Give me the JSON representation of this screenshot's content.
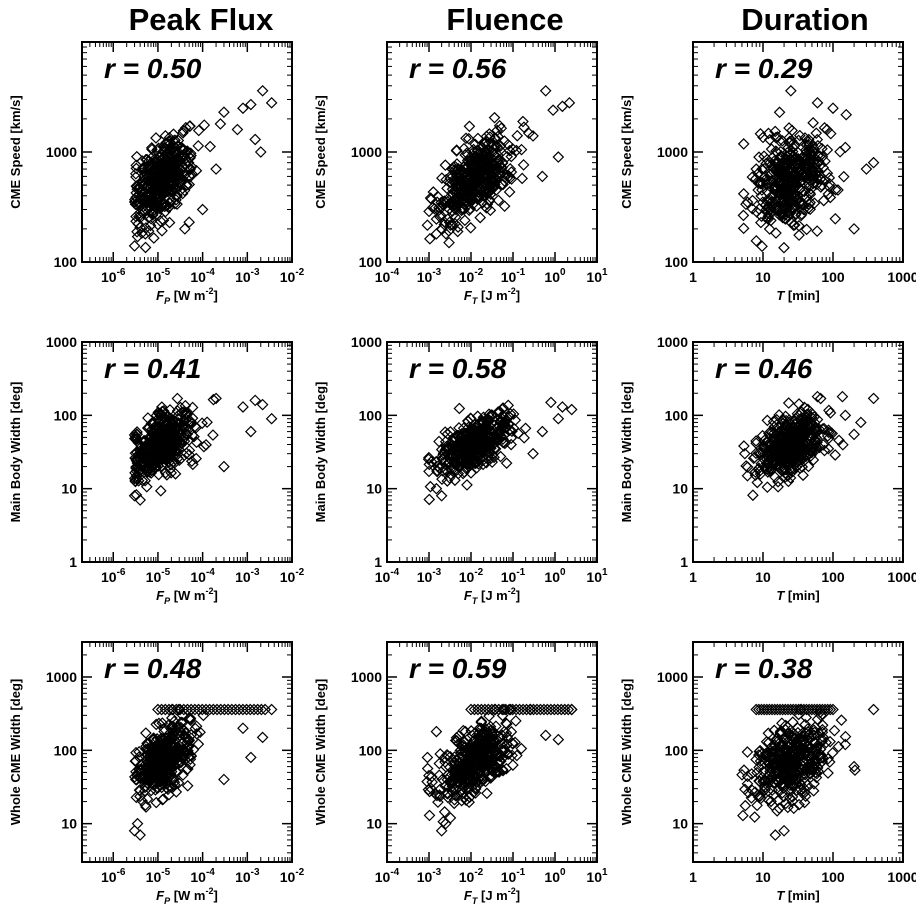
{
  "column_titles": [
    "Peak Flux",
    "Fluence",
    "Duration"
  ],
  "chart_data": [
    {
      "type": "scatter",
      "row": 0,
      "col": 0,
      "title": "",
      "annotation": "r = 0.50",
      "xlabel_main": "F",
      "xlabel_sub": "P",
      "xlabel_unit": " [W m",
      "xlabel_sup": "-2",
      "xlabel_close": "]",
      "ylabel": "CME Speed [km/s]",
      "xscale": "log",
      "yscale": "log",
      "xlim": [
        2e-07,
        0.01
      ],
      "ylim": [
        100,
        10000
      ],
      "xticks": [
        {
          "v": 1e-06,
          "base": "10",
          "exp": "-6"
        },
        {
          "v": 1e-05,
          "base": "10",
          "exp": "-5"
        },
        {
          "v": 0.0001,
          "base": "10",
          "exp": "-4"
        },
        {
          "v": 0.001,
          "base": "10",
          "exp": "-3"
        },
        {
          "v": 0.01,
          "base": "10",
          "exp": "-2"
        }
      ],
      "yticks": [
        {
          "v": 100,
          "label": "100"
        },
        {
          "v": 1000,
          "label": "1000"
        }
      ],
      "marker": "diamond-open",
      "cluster": {
        "center": [
          -4.9,
          2.75
        ],
        "spread": [
          0.32,
          0.2
        ],
        "corr": 0.5,
        "n": 420,
        "xmin": 3e-06,
        "ymin": 130
      },
      "points": [
        [
          0.0022,
          3600
        ],
        [
          0.0035,
          2800
        ],
        [
          0.0012,
          2700
        ],
        [
          0.0008,
          2500
        ],
        [
          0.0015,
          1300
        ],
        [
          0.002,
          1000
        ],
        [
          0.0003,
          2300
        ],
        [
          0.00025,
          1800
        ],
        [
          0.0006,
          1600
        ],
        [
          4e-05,
          200
        ],
        [
          5e-05,
          230
        ],
        [
          3e-06,
          140
        ],
        [
          3.5e-06,
          170
        ],
        [
          0.0001,
          300
        ],
        [
          0.0002,
          700
        ]
      ]
    },
    {
      "type": "scatter",
      "row": 0,
      "col": 1,
      "title": "",
      "annotation": "r = 0.56",
      "xlabel_main": "F",
      "xlabel_sub": "T",
      "xlabel_unit": " [J m",
      "xlabel_sup": "-2",
      "xlabel_close": "]",
      "ylabel": "CME Speed [km/s]",
      "xscale": "log",
      "yscale": "log",
      "xlim": [
        0.0001,
        10
      ],
      "ylim": [
        100,
        10000
      ],
      "xticks": [
        {
          "v": 0.0001,
          "base": "10",
          "exp": "-4"
        },
        {
          "v": 0.001,
          "base": "10",
          "exp": "-3"
        },
        {
          "v": 0.01,
          "base": "10",
          "exp": "-2"
        },
        {
          "v": 0.1,
          "base": "10",
          "exp": "-1"
        },
        {
          "v": 1,
          "base": "10",
          "exp": "0"
        },
        {
          "v": 10,
          "base": "10",
          "exp": "1"
        }
      ],
      "yticks": [
        {
          "v": 100,
          "label": "100"
        },
        {
          "v": 1000,
          "label": "1000"
        }
      ],
      "marker": "diamond-open",
      "cluster": {
        "center": [
          -1.9,
          2.75
        ],
        "spread": [
          0.45,
          0.2
        ],
        "corr": 0.56,
        "n": 420,
        "xmin": 0.0009,
        "ymin": 130
      },
      "points": [
        [
          2.2,
          2800
        ],
        [
          1.5,
          2600
        ],
        [
          0.6,
          3600
        ],
        [
          0.9,
          2400
        ],
        [
          0.3,
          1400
        ],
        [
          1.2,
          900
        ],
        [
          0.002,
          200
        ],
        [
          0.0015,
          180
        ],
        [
          0.003,
          150
        ],
        [
          0.5,
          600
        ]
      ]
    },
    {
      "type": "scatter",
      "row": 0,
      "col": 2,
      "title": "",
      "annotation": "r = 0.29",
      "xlabel_main": "T",
      "xlabel_sub": "",
      "xlabel_unit": " [min]",
      "xlabel_sup": "",
      "xlabel_close": "",
      "ylabel": "CME Speed [km/s]",
      "xscale": "log",
      "yscale": "log",
      "xlim": [
        1,
        1000
      ],
      "ylim": [
        100,
        10000
      ],
      "xticks": [
        {
          "v": 1,
          "label": "1"
        },
        {
          "v": 10,
          "label": "10"
        },
        {
          "v": 100,
          "label": "100"
        },
        {
          "v": 1000,
          "label": "1000"
        }
      ],
      "yticks": [
        {
          "v": 100,
          "label": "100"
        },
        {
          "v": 1000,
          "label": "1000"
        }
      ],
      "marker": "diamond-open",
      "cluster": {
        "center": [
          1.4,
          2.75
        ],
        "spread": [
          0.27,
          0.22
        ],
        "corr": 0.29,
        "n": 420,
        "xmin": 5,
        "ymin": 130
      },
      "points": [
        [
          380,
          800
        ],
        [
          300,
          700
        ],
        [
          200,
          200
        ],
        [
          25,
          3600
        ],
        [
          60,
          2800
        ],
        [
          100,
          2500
        ],
        [
          150,
          1100
        ],
        [
          6,
          350
        ],
        [
          8,
          700
        ]
      ]
    },
    {
      "type": "scatter",
      "row": 1,
      "col": 0,
      "title": "",
      "annotation": "r = 0.41",
      "xlabel_main": "F",
      "xlabel_sub": "P",
      "xlabel_unit": " [W m",
      "xlabel_sup": "-2",
      "xlabel_close": "]",
      "ylabel": "Main Body Width [deg]",
      "xscale": "log",
      "yscale": "log",
      "xlim": [
        2e-07,
        0.01
      ],
      "ylim": [
        1,
        1000
      ],
      "xticks": [
        {
          "v": 1e-06,
          "base": "10",
          "exp": "-6"
        },
        {
          "v": 1e-05,
          "base": "10",
          "exp": "-5"
        },
        {
          "v": 0.0001,
          "base": "10",
          "exp": "-4"
        },
        {
          "v": 0.001,
          "base": "10",
          "exp": "-3"
        },
        {
          "v": 0.01,
          "base": "10",
          "exp": "-2"
        }
      ],
      "yticks": [
        {
          "v": 1,
          "label": "1"
        },
        {
          "v": 10,
          "label": "10"
        },
        {
          "v": 100,
          "label": "100"
        },
        {
          "v": 1000,
          "label": "1000"
        }
      ],
      "marker": "diamond-open",
      "cluster": {
        "center": [
          -4.9,
          1.6
        ],
        "spread": [
          0.32,
          0.22
        ],
        "corr": 0.41,
        "n": 420,
        "xmin": 3e-06,
        "ymin": 6.5,
        "ymax": 180
      },
      "points": [
        [
          0.0022,
          140
        ],
        [
          0.0035,
          90
        ],
        [
          0.0015,
          160
        ],
        [
          0.0008,
          130
        ],
        [
          0.0012,
          60
        ],
        [
          0.0003,
          20
        ],
        [
          0.0002,
          170
        ],
        [
          3e-06,
          8
        ],
        [
          4e-06,
          7
        ]
      ]
    },
    {
      "type": "scatter",
      "row": 1,
      "col": 1,
      "title": "",
      "annotation": "r = 0.58",
      "xlabel_main": "F",
      "xlabel_sub": "T",
      "xlabel_unit": " [J m",
      "xlabel_sup": "-2",
      "xlabel_close": "]",
      "ylabel": "Main Body Width [deg]",
      "xscale": "log",
      "yscale": "log",
      "xlim": [
        0.0001,
        10
      ],
      "ylim": [
        1,
        1000
      ],
      "xticks": [
        {
          "v": 0.0001,
          "base": "10",
          "exp": "-4"
        },
        {
          "v": 0.001,
          "base": "10",
          "exp": "-3"
        },
        {
          "v": 0.01,
          "base": "10",
          "exp": "-2"
        },
        {
          "v": 0.1,
          "base": "10",
          "exp": "-1"
        },
        {
          "v": 1,
          "base": "10",
          "exp": "0"
        },
        {
          "v": 10,
          "base": "10",
          "exp": "1"
        }
      ],
      "yticks": [
        {
          "v": 1,
          "label": "1"
        },
        {
          "v": 10,
          "label": "10"
        },
        {
          "v": 100,
          "label": "100"
        },
        {
          "v": 1000,
          "label": "1000"
        }
      ],
      "marker": "diamond-open",
      "cluster": {
        "center": [
          -1.9,
          1.6
        ],
        "spread": [
          0.45,
          0.22
        ],
        "corr": 0.58,
        "n": 420,
        "xmin": 0.0009,
        "ymin": 6.5,
        "ymax": 180
      },
      "points": [
        [
          2.5,
          120
        ],
        [
          1.5,
          130
        ],
        [
          0.8,
          150
        ],
        [
          0.5,
          60
        ],
        [
          1.2,
          90
        ],
        [
          0.0015,
          10
        ],
        [
          0.002,
          8
        ],
        [
          0.3,
          30
        ]
      ]
    },
    {
      "type": "scatter",
      "row": 1,
      "col": 2,
      "title": "",
      "annotation": "r = 0.46",
      "xlabel_main": "T",
      "xlabel_sub": "",
      "xlabel_unit": " [min]",
      "xlabel_sup": "",
      "xlabel_close": "",
      "ylabel": "Main Body Width [deg]",
      "xscale": "log",
      "yscale": "log",
      "xlim": [
        1,
        1000
      ],
      "ylim": [
        1,
        1000
      ],
      "xticks": [
        {
          "v": 1,
          "label": "1"
        },
        {
          "v": 10,
          "label": "10"
        },
        {
          "v": 100,
          "label": "100"
        },
        {
          "v": 1000,
          "label": "1000"
        }
      ],
      "yticks": [
        {
          "v": 1,
          "label": "1"
        },
        {
          "v": 10,
          "label": "10"
        },
        {
          "v": 100,
          "label": "100"
        },
        {
          "v": 1000,
          "label": "1000"
        }
      ],
      "marker": "diamond-open",
      "cluster": {
        "center": [
          1.4,
          1.6
        ],
        "spread": [
          0.27,
          0.22
        ],
        "corr": 0.46,
        "n": 420,
        "xmin": 5,
        "ymin": 6.5,
        "ymax": 180
      },
      "points": [
        [
          380,
          170
        ],
        [
          250,
          80
        ],
        [
          200,
          55
        ],
        [
          150,
          100
        ],
        [
          60,
          180
        ],
        [
          6,
          15
        ],
        [
          5.5,
          30
        ]
      ]
    },
    {
      "type": "scatter",
      "row": 2,
      "col": 0,
      "title": "",
      "annotation": "r = 0.48",
      "xlabel_main": "F",
      "xlabel_sub": "P",
      "xlabel_unit": " [W m",
      "xlabel_sup": "-2",
      "xlabel_close": "]",
      "ylabel": "Whole CME Width [deg]",
      "xscale": "log",
      "yscale": "log",
      "xlim": [
        2e-07,
        0.01
      ],
      "ylim": [
        3,
        3000
      ],
      "xticks": [
        {
          "v": 1e-06,
          "base": "10",
          "exp": "-6"
        },
        {
          "v": 1e-05,
          "base": "10",
          "exp": "-5"
        },
        {
          "v": 0.0001,
          "base": "10",
          "exp": "-4"
        },
        {
          "v": 0.001,
          "base": "10",
          "exp": "-3"
        },
        {
          "v": 0.01,
          "base": "10",
          "exp": "-2"
        }
      ],
      "yticks": [
        {
          "v": 10,
          "label": "10"
        },
        {
          "v": 100,
          "label": "100"
        },
        {
          "v": 1000,
          "label": "1000"
        }
      ],
      "marker": "diamond-open",
      "cluster": {
        "center": [
          -4.9,
          1.85
        ],
        "spread": [
          0.32,
          0.25
        ],
        "corr": 0.48,
        "n": 420,
        "xmin": 3e-06,
        "ymin": 7,
        "ymax": 360
      },
      "halo": {
        "x_from": 1e-05,
        "x_to": 0.0025,
        "y": 360,
        "n": 30
      },
      "points": [
        [
          0.0022,
          150
        ],
        [
          0.0012,
          80
        ],
        [
          0.0008,
          200
        ],
        [
          0.0035,
          360
        ],
        [
          3e-06,
          8
        ],
        [
          4e-06,
          7
        ],
        [
          3.5e-06,
          10
        ],
        [
          0.0003,
          40
        ]
      ]
    },
    {
      "type": "scatter",
      "row": 2,
      "col": 1,
      "title": "",
      "annotation": "r = 0.59",
      "xlabel_main": "F",
      "xlabel_sub": "T",
      "xlabel_unit": " [J m",
      "xlabel_sup": "-2",
      "xlabel_close": "]",
      "ylabel": "Whole CME Width [deg]",
      "xscale": "log",
      "yscale": "log",
      "xlim": [
        0.0001,
        10
      ],
      "ylim": [
        3,
        3000
      ],
      "xticks": [
        {
          "v": 0.0001,
          "base": "10",
          "exp": "-4"
        },
        {
          "v": 0.001,
          "base": "10",
          "exp": "-3"
        },
        {
          "v": 0.01,
          "base": "10",
          "exp": "-2"
        },
        {
          "v": 0.1,
          "base": "10",
          "exp": "-1"
        },
        {
          "v": 1,
          "base": "10",
          "exp": "0"
        },
        {
          "v": 10,
          "base": "10",
          "exp": "1"
        }
      ],
      "yticks": [
        {
          "v": 10,
          "label": "10"
        },
        {
          "v": 100,
          "label": "100"
        },
        {
          "v": 1000,
          "label": "1000"
        }
      ],
      "marker": "diamond-open",
      "cluster": {
        "center": [
          -1.9,
          1.85
        ],
        "spread": [
          0.45,
          0.25
        ],
        "corr": 0.59,
        "n": 420,
        "xmin": 0.0009,
        "ymin": 7,
        "ymax": 360
      },
      "halo": {
        "x_from": 0.01,
        "x_to": 2.5,
        "y": 360,
        "n": 30
      },
      "points": [
        [
          2.5,
          360
        ],
        [
          1.2,
          140
        ],
        [
          0.6,
          160
        ],
        [
          0.002,
          8
        ],
        [
          0.0015,
          180
        ],
        [
          0.0025,
          10
        ]
      ]
    },
    {
      "type": "scatter",
      "row": 2,
      "col": 2,
      "title": "",
      "annotation": "r = 0.38",
      "xlabel_main": "T",
      "xlabel_sub": "",
      "xlabel_unit": " [min]",
      "xlabel_sup": "",
      "xlabel_close": "",
      "ylabel": "Whole CME Width [deg]",
      "xscale": "log",
      "yscale": "log",
      "xlim": [
        1,
        1000
      ],
      "ylim": [
        3,
        3000
      ],
      "xticks": [
        {
          "v": 1,
          "label": "1"
        },
        {
          "v": 10,
          "label": "10"
        },
        {
          "v": 100,
          "label": "100"
        },
        {
          "v": 1000,
          "label": "1000"
        }
      ],
      "yticks": [
        {
          "v": 10,
          "label": "10"
        },
        {
          "v": 100,
          "label": "100"
        },
        {
          "v": 1000,
          "label": "1000"
        }
      ],
      "marker": "diamond-open",
      "cluster": {
        "center": [
          1.4,
          1.85
        ],
        "spread": [
          0.27,
          0.25
        ],
        "corr": 0.38,
        "n": 420,
        "xmin": 5,
        "ymin": 7,
        "ymax": 360
      },
      "halo": {
        "x_from": 8,
        "x_to": 100,
        "y": 360,
        "n": 30
      },
      "points": [
        [
          380,
          360
        ],
        [
          200,
          60
        ],
        [
          150,
          120
        ],
        [
          6,
          35
        ],
        [
          15,
          7
        ],
        [
          20,
          8
        ]
      ]
    }
  ]
}
